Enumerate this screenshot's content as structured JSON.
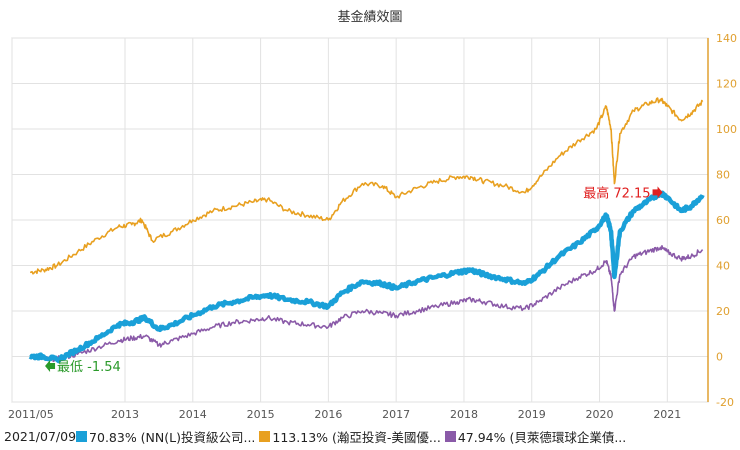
{
  "chart_data": {
    "type": "line",
    "title": "基金績效圖",
    "xlabel": "",
    "ylabel": "",
    "date_label": "2021/07/09",
    "ylim": [
      -20,
      140
    ],
    "yticks": [
      -20,
      0,
      20,
      40,
      60,
      80,
      100,
      120,
      140
    ],
    "xticks": [
      "2011/05",
      "2013",
      "2014",
      "2015",
      "2016",
      "2017",
      "2018",
      "2019",
      "2020",
      "2021"
    ],
    "grid": true,
    "legend_position": "bottom",
    "annotations": {
      "max": {
        "label": "最高 72.15",
        "x": 2020.9,
        "y": 72.15,
        "color": "#e02020"
      },
      "min": {
        "label": "最低 -1.54",
        "x": 2011.85,
        "y": -1.54,
        "color": "#2a9a2a"
      }
    },
    "series": [
      {
        "name": "70.83% (NN(L)投資級公司...",
        "color": "#1aa0d8",
        "x": [
          2011.6,
          2011.8,
          2012.0,
          2012.3,
          2012.6,
          2012.9,
          2013.1,
          2013.3,
          2013.5,
          2013.7,
          2014.0,
          2014.3,
          2014.6,
          2014.9,
          2015.1,
          2015.4,
          2015.7,
          2016.0,
          2016.2,
          2016.5,
          2016.8,
          2017.0,
          2017.3,
          2017.6,
          2017.9,
          2018.1,
          2018.3,
          2018.6,
          2018.9,
          2019.1,
          2019.4,
          2019.7,
          2019.95,
          2020.1,
          2020.17,
          2020.22,
          2020.3,
          2020.5,
          2020.7,
          2020.9,
          2021.0,
          2021.2,
          2021.35,
          2021.52
        ],
        "values": [
          0,
          0,
          -1.5,
          3,
          8,
          14,
          15,
          17,
          12,
          14,
          18,
          22,
          24,
          26,
          27,
          25,
          24,
          22,
          28,
          33,
          32,
          30,
          33,
          35,
          37,
          38,
          36,
          34,
          32,
          36,
          44,
          50,
          56,
          62,
          55,
          35,
          55,
          64,
          68,
          72,
          70,
          64,
          66,
          71
        ]
      },
      {
        "name": "113.13% (瀚亞投資-美國優...",
        "color": "#e8a020",
        "x": [
          2011.6,
          2011.8,
          2012.0,
          2012.3,
          2012.6,
          2012.9,
          2013.1,
          2013.25,
          2013.4,
          2013.7,
          2014.0,
          2014.3,
          2014.6,
          2014.9,
          2015.1,
          2015.4,
          2015.7,
          2016.0,
          2016.2,
          2016.5,
          2016.8,
          2017.0,
          2017.3,
          2017.6,
          2017.9,
          2018.1,
          2018.3,
          2018.6,
          2018.9,
          2019.1,
          2019.4,
          2019.7,
          2019.95,
          2020.1,
          2020.17,
          2020.22,
          2020.3,
          2020.5,
          2020.7,
          2020.9,
          2021.0,
          2021.2,
          2021.35,
          2021.52
        ],
        "values": [
          37,
          38,
          40,
          46,
          52,
          57,
          58,
          60,
          51,
          55,
          60,
          64,
          66,
          68,
          69,
          64,
          62,
          60,
          68,
          76,
          75,
          70,
          74,
          77,
          79,
          79,
          77,
          75,
          72,
          78,
          88,
          95,
          100,
          110,
          100,
          76,
          98,
          108,
          111,
          113,
          110,
          104,
          107,
          112
        ]
      },
      {
        "name": "47.94% (貝萊德環球企業債...",
        "color": "#8a5aa8",
        "x": [
          2011.6,
          2011.8,
          2012.0,
          2012.3,
          2012.6,
          2012.9,
          2013.1,
          2013.3,
          2013.5,
          2013.7,
          2014.0,
          2014.3,
          2014.6,
          2014.9,
          2015.1,
          2015.4,
          2015.7,
          2016.0,
          2016.2,
          2016.5,
          2016.8,
          2017.0,
          2017.3,
          2017.6,
          2017.9,
          2018.1,
          2018.3,
          2018.6,
          2018.9,
          2019.1,
          2019.4,
          2019.7,
          2019.95,
          2020.1,
          2020.17,
          2020.22,
          2020.3,
          2020.5,
          2020.7,
          2020.9,
          2021.0,
          2021.2,
          2021.35,
          2021.52
        ],
        "values": [
          0,
          -1,
          -1,
          1,
          4,
          7,
          8,
          9,
          5,
          7,
          10,
          13,
          15,
          16,
          17,
          15,
          14,
          13,
          17,
          20,
          19,
          18,
          20,
          22,
          24,
          25,
          24,
          22,
          21,
          24,
          30,
          35,
          38,
          42,
          35,
          20,
          36,
          44,
          46,
          48,
          46,
          43,
          44,
          47
        ]
      }
    ]
  }
}
